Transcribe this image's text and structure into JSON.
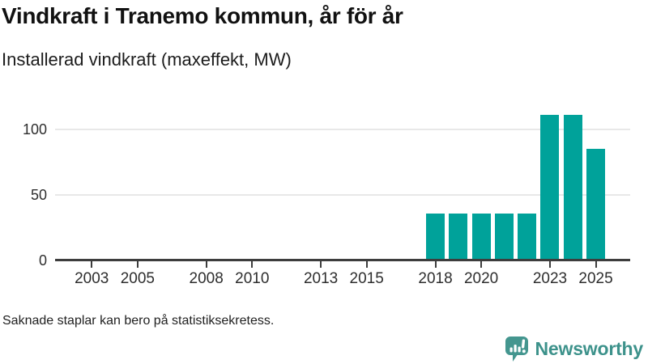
{
  "header": {
    "title": "Vindkraft i Tranemo kommun, år för år",
    "subtitle": "Installerad vindkraft (maxeffekt, MW)"
  },
  "chart_data": {
    "type": "bar",
    "title": "Vindkraft i Tranemo kommun, år för år",
    "ylabel": "Installerad vindkraft (maxeffekt, MW)",
    "unit": "MW",
    "categories": [
      2018,
      2019,
      2020,
      2021,
      2022,
      2023,
      2024,
      2025
    ],
    "values": [
      36,
      36,
      36,
      36,
      36,
      111,
      111,
      85
    ],
    "x_ticks": [
      2003,
      2005,
      2008,
      2010,
      2013,
      2015,
      2018,
      2020,
      2023,
      2025
    ],
    "y_ticks": [
      0,
      50,
      100
    ],
    "x_range": [
      2001.4,
      2026.5
    ],
    "ylim": [
      0,
      115
    ],
    "grid": "horizontal",
    "legend": "none",
    "bar_color": "#00a29a",
    "note": "No bars shown for years 2002-2017 (missing/zero values)"
  },
  "footer": {
    "note": "Saknade staplar kan bero på statistiksekretess.",
    "brand": "Newsworthy",
    "brand_color": "#3d928b",
    "logo_color": "#44968f"
  }
}
